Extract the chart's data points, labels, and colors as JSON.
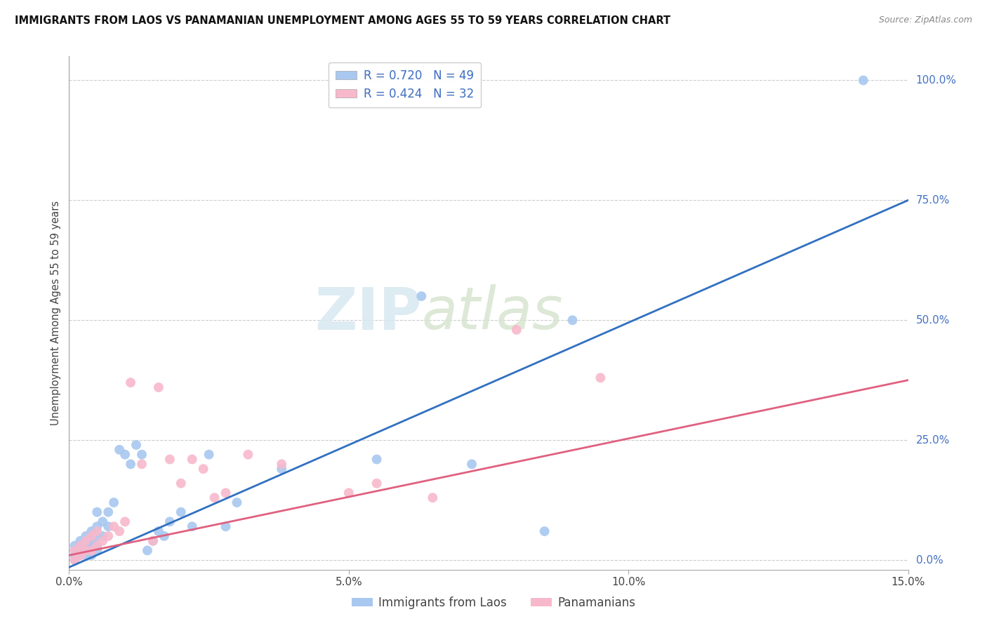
{
  "title": "IMMIGRANTS FROM LAOS VS PANAMANIAN UNEMPLOYMENT AMONG AGES 55 TO 59 YEARS CORRELATION CHART",
  "source": "Source: ZipAtlas.com",
  "ylabel": "Unemployment Among Ages 55 to 59 years",
  "xlim": [
    0.0,
    0.15
  ],
  "ylim": [
    -0.02,
    1.05
  ],
  "xticks": [
    0.0,
    0.05,
    0.1,
    0.15
  ],
  "xtick_labels": [
    "0.0%",
    "5.0%",
    "10.0%",
    "15.0%"
  ],
  "yticks_right": [
    0.0,
    0.25,
    0.5,
    0.75,
    1.0
  ],
  "ytick_labels_right": [
    "0.0%",
    "25.0%",
    "50.0%",
    "75.0%",
    "100.0%"
  ],
  "blue_color": "#A8C8F0",
  "blue_line_color": "#3070C0",
  "pink_color": "#F8B8CC",
  "pink_line_color": "#E06080",
  "blue_label": "R = 0.720   N = 49",
  "pink_label": "R = 0.424   N = 32",
  "legend_label_blue": "Immigrants from Laos",
  "legend_label_pink": "Panamanians",
  "watermark_zip": "ZIP",
  "watermark_atlas": "atlas",
  "blue_line_x0": 0.0,
  "blue_line_y0": -0.015,
  "blue_line_x1": 0.15,
  "blue_line_y1": 0.75,
  "pink_line_x0": 0.0,
  "pink_line_y0": 0.01,
  "pink_line_x1": 0.15,
  "pink_line_y1": 0.375,
  "blue_scatter_x": [
    0.001,
    0.001,
    0.001,
    0.001,
    0.002,
    0.002,
    0.002,
    0.002,
    0.003,
    0.003,
    0.003,
    0.003,
    0.004,
    0.004,
    0.004,
    0.004,
    0.004,
    0.005,
    0.005,
    0.005,
    0.005,
    0.005,
    0.006,
    0.006,
    0.007,
    0.007,
    0.008,
    0.009,
    0.01,
    0.011,
    0.012,
    0.013,
    0.014,
    0.015,
    0.016,
    0.017,
    0.018,
    0.02,
    0.022,
    0.025,
    0.028,
    0.03,
    0.038,
    0.055,
    0.063,
    0.072,
    0.085,
    0.09,
    0.142
  ],
  "blue_scatter_y": [
    0.0,
    0.01,
    0.02,
    0.03,
    0.01,
    0.02,
    0.03,
    0.04,
    0.01,
    0.02,
    0.03,
    0.05,
    0.01,
    0.02,
    0.03,
    0.04,
    0.06,
    0.02,
    0.03,
    0.05,
    0.07,
    0.1,
    0.05,
    0.08,
    0.07,
    0.1,
    0.12,
    0.23,
    0.22,
    0.2,
    0.24,
    0.22,
    0.02,
    0.04,
    0.06,
    0.05,
    0.08,
    0.1,
    0.07,
    0.22,
    0.07,
    0.12,
    0.19,
    0.21,
    0.55,
    0.2,
    0.06,
    0.5,
    1.0
  ],
  "pink_scatter_x": [
    0.001,
    0.001,
    0.002,
    0.002,
    0.003,
    0.003,
    0.004,
    0.004,
    0.005,
    0.005,
    0.006,
    0.007,
    0.008,
    0.009,
    0.01,
    0.011,
    0.013,
    0.015,
    0.016,
    0.018,
    0.02,
    0.022,
    0.024,
    0.026,
    0.028,
    0.032,
    0.038,
    0.05,
    0.055,
    0.065,
    0.08,
    0.095
  ],
  "pink_scatter_y": [
    0.0,
    0.02,
    0.01,
    0.03,
    0.02,
    0.04,
    0.02,
    0.05,
    0.03,
    0.06,
    0.04,
    0.05,
    0.07,
    0.06,
    0.08,
    0.37,
    0.2,
    0.04,
    0.36,
    0.21,
    0.16,
    0.21,
    0.19,
    0.13,
    0.14,
    0.22,
    0.2,
    0.14,
    0.16,
    0.13,
    0.48,
    0.38
  ]
}
